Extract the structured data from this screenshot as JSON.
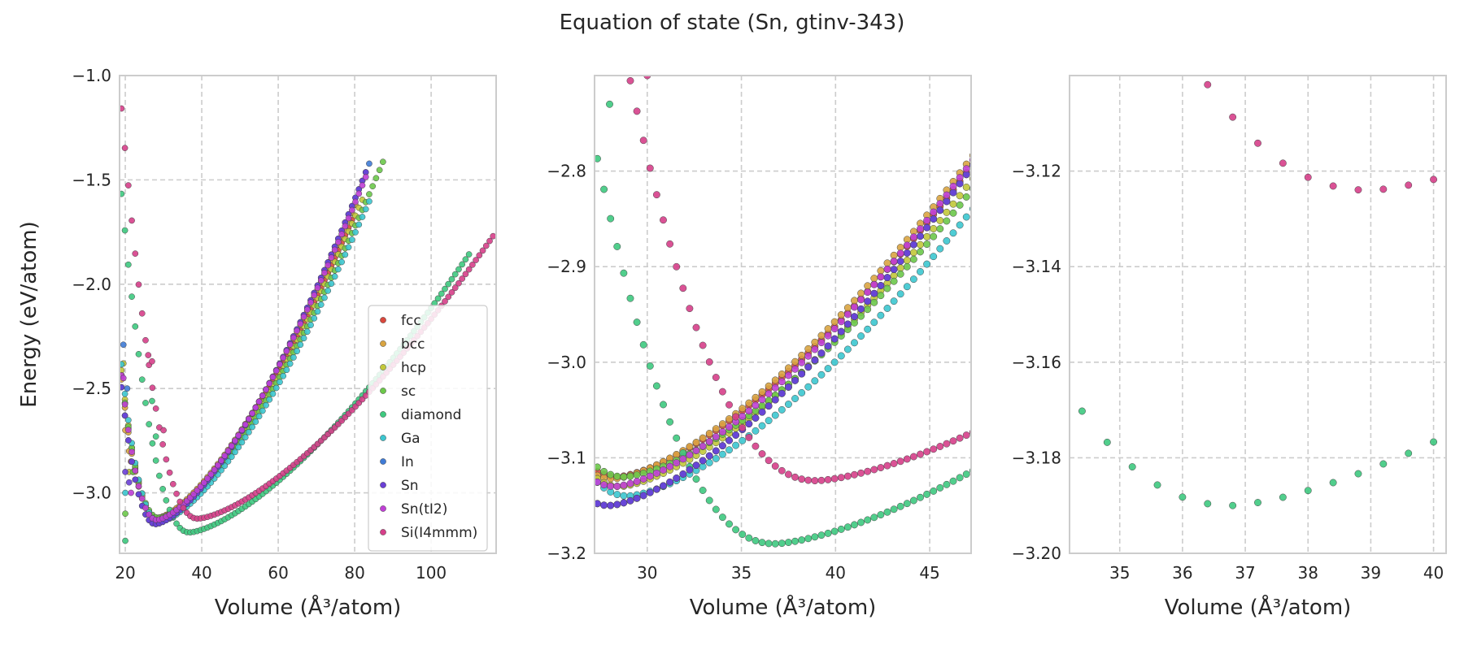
{
  "figure": {
    "title": "Equation of state (Sn, gtinv-343)"
  },
  "legend": {
    "placement": "lower-right of first panel",
    "entries": [
      {
        "name": "fcc",
        "color": "#d9473c"
      },
      {
        "name": "bcc",
        "color": "#d9a441"
      },
      {
        "name": "hcp",
        "color": "#c2c83a"
      },
      {
        "name": "sc",
        "color": "#6cc84a"
      },
      {
        "name": "diamond",
        "color": "#3ec97f"
      },
      {
        "name": "Ga",
        "color": "#3cc6cf"
      },
      {
        "name": "In",
        "color": "#3f7bd6"
      },
      {
        "name": "Sn",
        "color": "#6a3fd6"
      },
      {
        "name": "Sn(tI2)",
        "color": "#c03fd6"
      },
      {
        "name": "Si(I4mmm)",
        "color": "#d63f8a"
      }
    ]
  },
  "chart_data": [
    {
      "type": "scatter",
      "xlabel": "Volume (Å³/atom)",
      "ylabel": "Energy (eV/atom)",
      "xlim": [
        18.5,
        117
      ],
      "ylim": [
        -3.29,
        -1.0
      ],
      "xticks": [
        20,
        40,
        60,
        80,
        100
      ],
      "yticks": [
        -1.0,
        -1.5,
        -2.0,
        -2.5,
        -3.0
      ],
      "grid": true,
      "legend": true,
      "series": [
        {
          "name": "fcc",
          "color": "#d9473c",
          "v0": 28.4,
          "e0": -3.12,
          "b": 0.0055,
          "n": 0.96,
          "vmax": 80,
          "offset": 0.0,
          "spikes": [
            [
              21.5,
              -2.85
            ],
            [
              22,
              -2.9
            ]
          ]
        },
        {
          "name": "bcc",
          "color": "#d9a441",
          "v0": 28.2,
          "e0": -3.122,
          "b": 0.0056,
          "n": 0.96,
          "vmax": 81,
          "offset": 0.0,
          "spikes": [
            [
              20,
              -2.7
            ],
            [
              21,
              -2.8
            ]
          ]
        },
        {
          "name": "hcp",
          "color": "#c2c83a",
          "v0": 28.6,
          "e0": -3.13,
          "b": 0.0055,
          "n": 0.96,
          "vmax": 82,
          "offset": 0.0,
          "spikes": [
            [
              19.5,
              -2.38
            ],
            [
              21,
              -2.9
            ]
          ]
        },
        {
          "name": "sc",
          "color": "#6cc84a",
          "v0": 28.8,
          "e0": -3.12,
          "b": 0.005,
          "n": 0.97,
          "vmax": 88,
          "offset": 0.0,
          "spikes": [
            [
              20,
              -3.1
            ],
            [
              22,
              -2.9
            ]
          ]
        },
        {
          "name": "diamond",
          "color": "#3ec97f",
          "v0": 36.8,
          "e0": -3.19,
          "b": 0.0032,
          "n": 0.95,
          "vmax": 110,
          "offset": 0.0,
          "spikes": [
            [
              20,
              -3.23
            ],
            [
              27,
              -2.56
            ],
            [
              28,
              -2.73
            ]
          ]
        },
        {
          "name": "Ga",
          "color": "#3cc6cf",
          "v0": 29.0,
          "e0": -3.14,
          "b": 0.0053,
          "n": 0.96,
          "vmax": 84,
          "offset": 0.0,
          "spikes": [
            [
              20,
              -3.0
            ]
          ]
        },
        {
          "name": "In",
          "color": "#3f7bd6",
          "v0": 28.0,
          "e0": -3.15,
          "b": 0.0058,
          "n": 0.96,
          "vmax": 84,
          "offset": 0.0,
          "spikes": [
            [
              19.5,
              -2.29
            ],
            [
              20.5,
              -2.5
            ]
          ]
        },
        {
          "name": "Sn",
          "color": "#6a3fd6",
          "v0": 28.0,
          "e0": -3.15,
          "b": 0.0058,
          "n": 0.96,
          "vmax": 83,
          "offset": 0.0,
          "spikes": [
            [
              20,
              -2.9
            ],
            [
              21,
              -2.95
            ]
          ]
        },
        {
          "name": "Sn(tI2)",
          "color": "#c03fd6",
          "v0": 28.3,
          "e0": -3.13,
          "b": 0.0057,
          "n": 0.96,
          "vmax": 83,
          "offset": 0.0,
          "spikes": [
            [
              19.5,
              -2.45
            ],
            [
              21.5,
              -3.0
            ]
          ]
        },
        {
          "name": "Si(I4mmm)",
          "color": "#d63f8a",
          "v0": 39.0,
          "e0": -3.124,
          "b": 0.003,
          "n": 0.95,
          "vmax": 117,
          "offset": 0.0,
          "spikes": [
            [
              26,
              -2.34
            ],
            [
              27,
              -2.37
            ],
            [
              30,
              -2.7
            ]
          ]
        }
      ]
    },
    {
      "type": "scatter",
      "xlabel": "Volume (Å³/atom)",
      "ylabel": "",
      "xlim": [
        27.2,
        47.2
      ],
      "ylim": [
        -3.2,
        -2.7
      ],
      "xticks": [
        30,
        35,
        40,
        45
      ],
      "yticks": [
        -2.8,
        -2.9,
        -3.0,
        -3.1,
        -3.2
      ],
      "grid": true,
      "legend": false
    },
    {
      "type": "scatter",
      "xlabel": "Volume (Å³/atom)",
      "ylabel": "",
      "xlim": [
        34.2,
        40.2
      ],
      "ylim": [
        -3.2,
        -3.1
      ],
      "xticks": [
        35,
        36,
        37,
        38,
        39,
        40
      ],
      "yticks": [
        -3.12,
        -3.14,
        -3.16,
        -3.18,
        -3.2
      ],
      "grid": true,
      "legend": false
    }
  ]
}
